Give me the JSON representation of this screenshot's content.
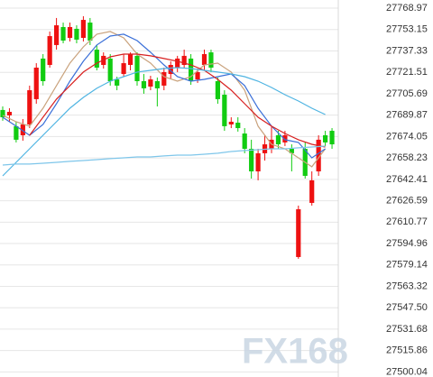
{
  "chart_data": {
    "type": "candlestick",
    "watermark": "FX168",
    "up_color": "#ee1111",
    "down_color": "#11cc11",
    "open": [
      27693.7,
      27689.7,
      27681.7,
      27675.0,
      27683.0,
      27701.7,
      27731.7,
      27727.0,
      27741.7,
      27755.0,
      27747.0,
      27753.7,
      27747.0,
      27758.3,
      27738.3,
      27727.0,
      27731.7,
      27716.3,
      27720.3,
      27727.0,
      27733.7,
      27715.0,
      27711.0,
      27715.0,
      27711.7,
      27720.3,
      27725.0,
      27727.0,
      27731.7,
      27716.3,
      27727.0,
      27736.3,
      27715.0,
      27705.0,
      27683.0,
      27684.3,
      27676.3,
      27665.0,
      27648.3,
      27661.7,
      27665.0,
      27675.0,
      27669.7,
      27665.0,
      27585.0,
      27665.0,
      27625.0,
      27648.3,
      27675.0,
      27678.3
    ],
    "high": [
      27696.3,
      27695.0,
      27685.0,
      27687.0,
      27711.7,
      27728.3,
      27735.0,
      27751.7,
      27761.7,
      27758.3,
      27758.3,
      27756.3,
      27763.0,
      27761.7,
      27741.7,
      27736.3,
      27735.0,
      27718.3,
      27735.0,
      27736.3,
      27736.3,
      27720.3,
      27719.0,
      27717.7,
      27725.0,
      27729.7,
      27733.7,
      27738.3,
      27735.0,
      27724.3,
      27738.3,
      27738.3,
      27717.7,
      27708.3,
      27688.3,
      27688.3,
      27680.3,
      27671.7,
      27665.0,
      27675.0,
      27681.7,
      27678.3,
      27678.3,
      27668.3,
      27623.0,
      27669.7,
      27648.3,
      27675.0,
      27678.3,
      27680.3
    ],
    "low": [
      27685.7,
      27685.0,
      27669.7,
      27671.0,
      27680.3,
      27698.3,
      27711.7,
      27725.0,
      27738.3,
      27743.0,
      27744.3,
      27743.0,
      27744.3,
      27741.7,
      27723.0,
      27724.3,
      27711.7,
      27708.3,
      27718.3,
      27723.0,
      27711.7,
      27705.7,
      27708.3,
      27696.3,
      27708.3,
      27716.3,
      27721.7,
      27724.3,
      27712.3,
      27713.7,
      27723.0,
      27721.7,
      27698.3,
      27678.3,
      27680.3,
      27677.7,
      27661.7,
      27643.0,
      27641.7,
      27656.3,
      27661.7,
      27665.0,
      27667.0,
      27648.3,
      27583.7,
      27643.0,
      27623.0,
      27645.0,
      27667.0,
      27665.0
    ],
    "close": [
      27688.3,
      27692.3,
      27671.7,
      27683.0,
      27708.3,
      27725.0,
      27715.0,
      27748.3,
      27756.3,
      27745.0,
      27755.0,
      27745.7,
      27760.3,
      27745.0,
      27725.0,
      27733.7,
      27715.0,
      27711.7,
      27728.3,
      27735.0,
      27715.0,
      27709.7,
      27716.3,
      27709.7,
      27721.7,
      27727.0,
      27731.7,
      27733.7,
      27715.0,
      27721.7,
      27735.0,
      27725.0,
      27701.7,
      27681.7,
      27685.0,
      27680.3,
      27665.0,
      27648.3,
      27661.7,
      27668.3,
      27671.7,
      27668.3,
      27675.0,
      27661.7,
      27620.3,
      27645.0,
      27641.7,
      27671.7,
      27669.7,
      27668.3
    ],
    "lines": [
      {
        "color": "#c9a27c",
        "x": [
          0,
          2,
          4,
          6,
          8,
          10,
          12,
          14,
          16,
          18,
          20,
          22,
          24,
          26,
          28,
          30,
          32,
          34,
          36,
          38,
          40,
          42,
          44,
          46,
          48
        ],
        "values": [
          27689.7,
          27685.0,
          27681.7,
          27695.0,
          27711.7,
          27728.3,
          27740.3,
          27749.7,
          27751.7,
          27747.0,
          27735.0,
          27728.3,
          27718.3,
          27715.0,
          27718.3,
          27727.0,
          27728.3,
          27721.7,
          27708.3,
          27681.7,
          27668.3,
          27665.0,
          27658.3,
          27651.7,
          27665.0
        ]
      },
      {
        "color": "#3a6fd8",
        "x": [
          0,
          2,
          4,
          6,
          8,
          10,
          12,
          14,
          16,
          18,
          20,
          22,
          24,
          26,
          28,
          30,
          32,
          34,
          36,
          38,
          40,
          42,
          44,
          46,
          48
        ],
        "values": [
          27688.3,
          27681.7,
          27675.0,
          27683.0,
          27698.3,
          27715.0,
          27729.7,
          27741.7,
          27748.3,
          27749.7,
          27745.0,
          27736.3,
          27727.0,
          27718.3,
          27715.0,
          27716.3,
          27718.3,
          27720.3,
          27711.7,
          27695.0,
          27681.7,
          27671.7,
          27669.7,
          27658.3,
          27665.0
        ]
      },
      {
        "color": "#d82020",
        "x": [
          0,
          2,
          4,
          6,
          8,
          10,
          12,
          14,
          16,
          18,
          20,
          22,
          24,
          26,
          28,
          30,
          32,
          34,
          36,
          38,
          40,
          42,
          44,
          46,
          48
        ],
        "values": [
          null,
          null,
          27675.0,
          27688.3,
          27701.7,
          27711.7,
          27721.7,
          27728.3,
          27733.0,
          27735.0,
          27735.0,
          27733.7,
          27731.7,
          27729.7,
          27727.0,
          27723.0,
          27716.3,
          27708.3,
          27698.3,
          27688.3,
          27681.7,
          27676.3,
          27671.7,
          27668.3,
          27666.3
        ]
      },
      {
        "color": "#4fb4e2",
        "x": [
          0,
          2,
          4,
          6,
          8,
          10,
          12,
          14,
          16,
          18,
          20,
          22,
          24,
          26,
          28,
          30,
          32,
          34,
          36,
          38,
          40,
          42,
          44,
          46,
          48
        ],
        "values": [
          27645.0,
          27655.0,
          27665.0,
          27675.0,
          27685.0,
          27695.0,
          27703.0,
          27709.7,
          27715.0,
          27718.3,
          27721.7,
          27723.0,
          27724.3,
          27725.0,
          27724.3,
          27723.0,
          27721.7,
          27720.3,
          27718.3,
          27715.0,
          27710.3,
          27705.0,
          27700.3,
          27695.0,
          27690.3
        ]
      },
      {
        "color": "#7ec6ea",
        "x": [
          0,
          2,
          4,
          6,
          8,
          10,
          12,
          14,
          16,
          18,
          20,
          22,
          24,
          26,
          28,
          30,
          32,
          34,
          36,
          38,
          40,
          42,
          44,
          46,
          48
        ],
        "values": [
          27653.0,
          27653.7,
          27653.7,
          27654.3,
          27655.0,
          27655.7,
          27656.3,
          27657.0,
          27657.7,
          27658.3,
          27659.0,
          27659.0,
          27659.7,
          27660.3,
          27660.3,
          27661.0,
          27661.7,
          27663.0,
          27663.7,
          27664.3,
          27665.0,
          27665.0,
          27665.7,
          27666.3,
          27667.0
        ]
      }
    ],
    "ylim": [
      27496.3,
      27775.0
    ],
    "yticks": [
      27768.97,
      27753.15,
      27737.33,
      27721.51,
      27705.69,
      27689.87,
      27674.05,
      27658.23,
      27642.41,
      27626.59,
      27610.77,
      27594.96,
      27579.14,
      27563.32,
      {
        "value": 27547.5,
        "label": "27547.50"
      },
      27531.68,
      27515.86,
      27500.04
    ],
    "grid": true
  }
}
